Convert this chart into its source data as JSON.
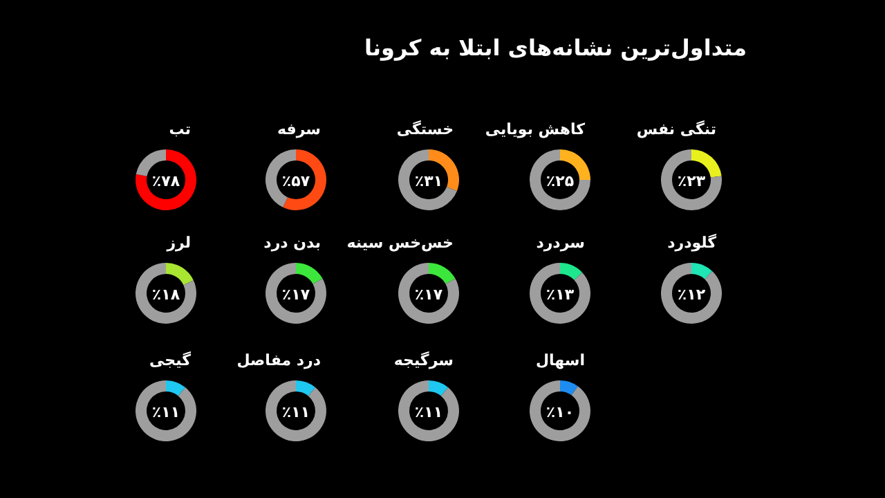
{
  "chart_data": [
    {
      "type": "other",
      "title": "متداول‌ترین نشانه‌های ابتلا به کرونا"
    },
    {
      "type": "donut",
      "title": "تنگی نفس",
      "categories": [
        null,
        null
      ],
      "values": [
        23,
        77
      ],
      "colors": [
        "#e8f01e",
        "#9e9e9e"
      ],
      "annotations": [
        "٪۲۳"
      ]
    },
    {
      "type": "donut",
      "title": "کاهش بویایی",
      "categories": [
        null,
        null
      ],
      "values": [
        25,
        75
      ],
      "colors": [
        "#ffb21e",
        "#9e9e9e"
      ],
      "annotations": [
        "٪۲۵"
      ]
    },
    {
      "type": "donut",
      "title": "خستگی",
      "categories": [
        null,
        null
      ],
      "values": [
        31,
        69
      ],
      "colors": [
        "#ff8c1a",
        "#9e9e9e"
      ],
      "annotations": [
        "٪۳۱"
      ]
    },
    {
      "type": "donut",
      "title": "سرفه",
      "categories": [
        null,
        null
      ],
      "values": [
        57,
        43
      ],
      "colors": [
        "#ff4a14",
        "#9e9e9e"
      ],
      "annotations": [
        "٪۵۷"
      ]
    },
    {
      "type": "donut",
      "title": "تب",
      "categories": [
        null,
        null
      ],
      "values": [
        78,
        22
      ],
      "colors": [
        "#ff0000",
        "#9e9e9e"
      ],
      "annotations": [
        "٪۷۸"
      ]
    },
    {
      "type": "donut",
      "title": "گلودرد",
      "categories": [
        null,
        null
      ],
      "values": [
        12,
        88
      ],
      "colors": [
        "#1ee6b4",
        "#9e9e9e"
      ],
      "annotations": [
        "٪۱۲"
      ]
    },
    {
      "type": "donut",
      "title": "سردرد",
      "categories": [
        null,
        null
      ],
      "values": [
        13,
        87
      ],
      "colors": [
        "#1ee68c",
        "#9e9e9e"
      ],
      "annotations": [
        "٪۱۳"
      ]
    },
    {
      "type": "donut",
      "title": "خس‌خس سینه",
      "categories": [
        null,
        null
      ],
      "values": [
        17,
        83
      ],
      "colors": [
        "#3ce63c",
        "#9e9e9e"
      ],
      "annotations": [
        "٪۱۷"
      ]
    },
    {
      "type": "donut",
      "title": "بدن درد",
      "categories": [
        null,
        null
      ],
      "values": [
        17,
        83
      ],
      "colors": [
        "#3ce63c",
        "#9e9e9e"
      ],
      "annotations": [
        "٪۱۷"
      ]
    },
    {
      "type": "donut",
      "title": "لرز",
      "categories": [
        null,
        null
      ],
      "values": [
        18,
        82
      ],
      "colors": [
        "#a8e632",
        "#9e9e9e"
      ],
      "annotations": [
        "٪۱۸"
      ]
    },
    {
      "type": "donut",
      "title": "اسهال",
      "categories": [
        null,
        null
      ],
      "values": [
        10,
        90
      ],
      "colors": [
        "#1e8cf0",
        "#9e9e9e"
      ],
      "annotations": [
        "٪۱۰"
      ]
    },
    {
      "type": "donut",
      "title": "سرگیجه",
      "categories": [
        null,
        null
      ],
      "values": [
        11,
        89
      ],
      "colors": [
        "#1ec8f0",
        "#9e9e9e"
      ],
      "annotations": [
        "٪۱۱"
      ]
    },
    {
      "type": "donut",
      "title": "درد مفاصل",
      "categories": [
        null,
        null
      ],
      "values": [
        11,
        89
      ],
      "colors": [
        "#1ec8f0",
        "#9e9e9e"
      ],
      "annotations": [
        "٪۱۱"
      ]
    },
    {
      "type": "donut",
      "title": "گیجی",
      "categories": [
        null,
        null
      ],
      "values": [
        11,
        89
      ],
      "colors": [
        "#1ec8f0",
        "#9e9e9e"
      ],
      "annotations": [
        "٪۱۱"
      ]
    }
  ]
}
